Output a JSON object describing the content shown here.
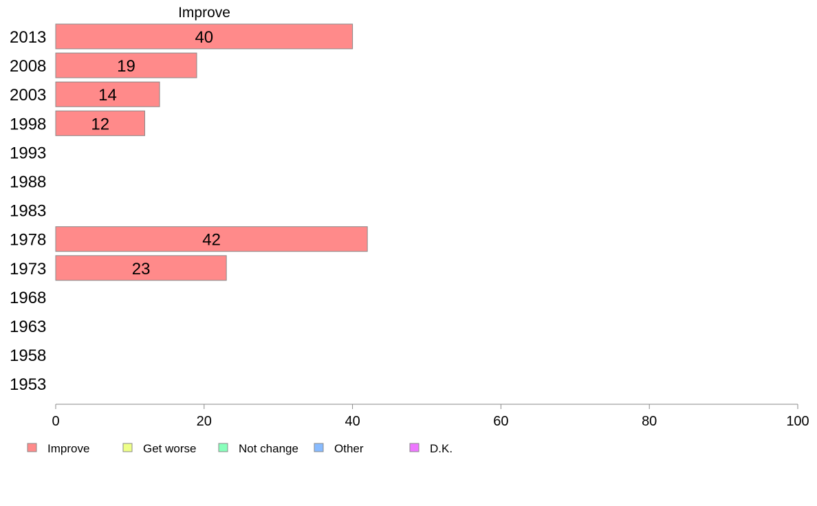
{
  "chart_data": {
    "type": "bar",
    "orientation": "horizontal",
    "title": "Improve",
    "categories": [
      "2013",
      "2008",
      "2003",
      "1998",
      "1993",
      "1988",
      "1983",
      "1978",
      "1973",
      "1968",
      "1963",
      "1958",
      "1953"
    ],
    "series": [
      {
        "name": "Improve",
        "color": "#ff8a8a",
        "values": [
          40,
          19,
          14,
          12,
          null,
          null,
          null,
          42,
          23,
          null,
          null,
          null,
          null
        ]
      }
    ],
    "xlim": [
      0,
      100
    ],
    "xticks": [
      0,
      20,
      40,
      60,
      80,
      100
    ],
    "grid": false,
    "legend": {
      "placement": "bottom-left",
      "items": [
        {
          "label": "Improve",
          "color": "#ff8a8a"
        },
        {
          "label": "Get worse",
          "color": "#eeff88"
        },
        {
          "label": "Not change",
          "color": "#88ffbb"
        },
        {
          "label": "Other",
          "color": "#88bbff"
        },
        {
          "label": "D.K.",
          "color": "#ee77ff"
        }
      ]
    }
  }
}
